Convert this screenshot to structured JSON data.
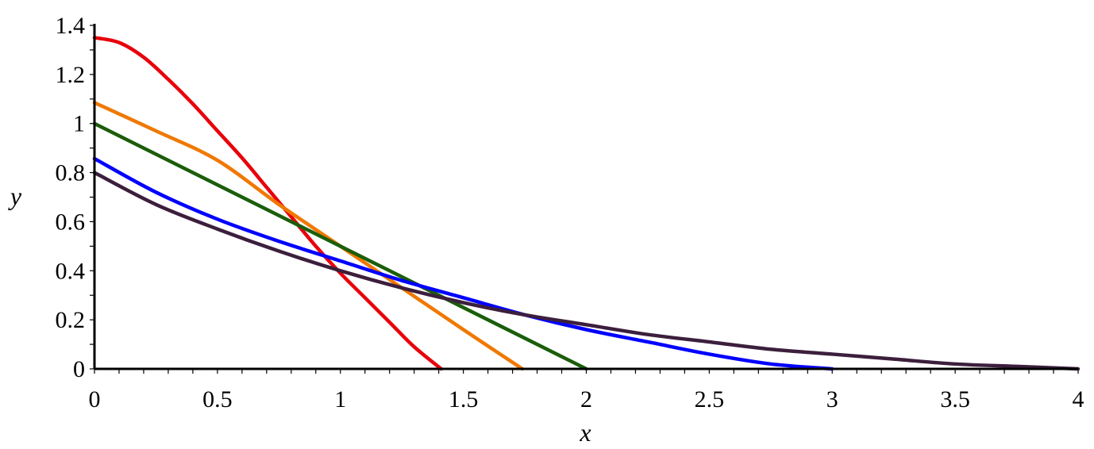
{
  "chart_data": {
    "type": "line",
    "xlabel": "x",
    "ylabel": "y",
    "xlim": [
      0,
      4
    ],
    "ylim": [
      0,
      1.4
    ],
    "x_ticks": [
      "0",
      "0.5",
      "1",
      "1.5",
      "2",
      "2.5",
      "3",
      "3.5",
      "4"
    ],
    "y_ticks": [
      "0",
      "0.2",
      "0.4",
      "0.6",
      "0.8",
      "1",
      "1.2",
      "1.4"
    ],
    "grid": false,
    "legend": "none",
    "series": [
      {
        "color": "#e8000b",
        "x": [
          0,
          0.1,
          0.2,
          0.3,
          0.4,
          0.5,
          0.6,
          0.7,
          0.8,
          0.9,
          1.0,
          1.1,
          1.2,
          1.3,
          1.41
        ],
        "y": [
          1.35,
          1.33,
          1.27,
          1.18,
          1.08,
          0.97,
          0.86,
          0.74,
          0.62,
          0.5,
          0.39,
          0.29,
          0.19,
          0.09,
          0.0
        ]
      },
      {
        "color": "#f07800",
        "x": [
          0,
          0.25,
          0.5,
          0.75,
          1.0,
          1.25,
          1.5,
          1.74
        ],
        "y": [
          1.085,
          0.97,
          0.85,
          0.67,
          0.5,
          0.33,
          0.16,
          0.0
        ]
      },
      {
        "color": "#1a5e0a",
        "x": [
          0,
          2
        ],
        "y": [
          1.0,
          0.0
        ]
      },
      {
        "color": "#0000ff",
        "x": [
          0,
          0.25,
          0.5,
          0.75,
          1.0,
          1.25,
          1.5,
          1.75,
          2.0,
          2.25,
          2.5,
          2.75,
          3.0
        ],
        "y": [
          0.857,
          0.72,
          0.61,
          0.52,
          0.44,
          0.36,
          0.29,
          0.22,
          0.16,
          0.11,
          0.06,
          0.02,
          0.0
        ]
      },
      {
        "color": "#3c1f3c",
        "x": [
          0,
          0.25,
          0.5,
          0.75,
          1.0,
          1.25,
          1.5,
          1.75,
          2.0,
          2.25,
          2.5,
          2.75,
          3.0,
          3.25,
          3.5,
          3.75,
          4.0
        ],
        "y": [
          0.8,
          0.67,
          0.57,
          0.48,
          0.4,
          0.33,
          0.27,
          0.22,
          0.18,
          0.14,
          0.11,
          0.08,
          0.06,
          0.04,
          0.02,
          0.01,
          0.0
        ]
      }
    ]
  }
}
